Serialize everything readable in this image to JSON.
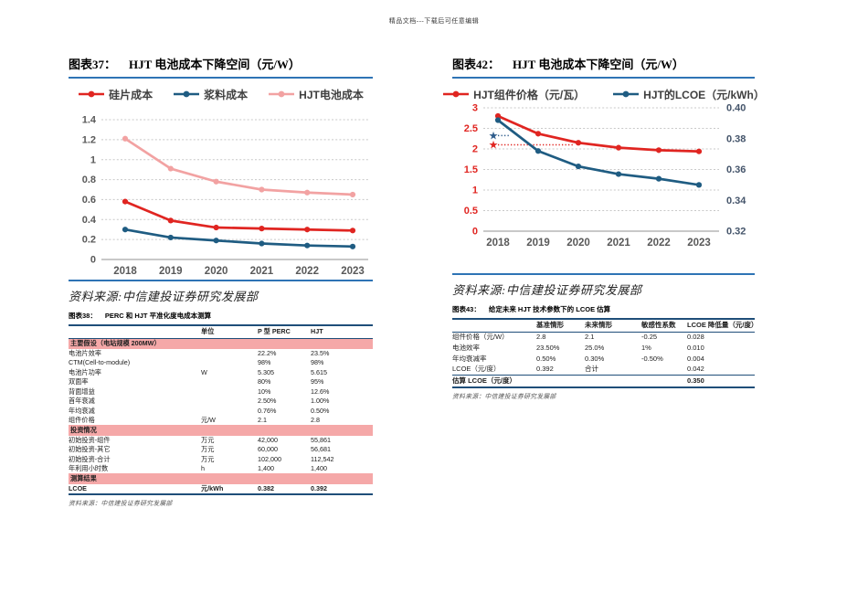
{
  "page": {
    "watermark": "精品文档---下载后可任意编辑"
  },
  "colors": {
    "accent_blue_rule": "#2E74B5",
    "table_rule_navy": "#1F4E79",
    "section_band_pink": "#F5A8A8",
    "series_red": "#E02521",
    "series_navy": "#1F5C82",
    "series_pink": "#F2A2A2",
    "axis_gray": "#595959",
    "right_axis_slate": "#44546A"
  },
  "figure37": {
    "caption_no": "图表37：",
    "caption_title": "HJT 电池成本下降空间（元/W）",
    "source": "资料来源:中信建投证券研究发展部"
  },
  "figure42": {
    "caption_no": "图表42：",
    "caption_title": "HJT 电池成本下降空间（元/W）",
    "source": "资料来源:中信建投证券研究发展部"
  },
  "chart_data": [
    {
      "type": "line",
      "title": "图表37： HJT 电池成本下降空间（元/W）",
      "categories": [
        "2018",
        "2019",
        "2020",
        "2021",
        "2022",
        "2023"
      ],
      "series": [
        {
          "name": "硅片成本",
          "color": "#E02521",
          "axis": "left",
          "values": [
            0.58,
            0.39,
            0.32,
            0.31,
            0.3,
            0.29
          ]
        },
        {
          "name": "浆料成本",
          "color": "#1F5C82",
          "axis": "left",
          "values": [
            0.3,
            0.22,
            0.19,
            0.16,
            0.14,
            0.13
          ]
        },
        {
          "name": "HJT电池成本",
          "color": "#F2A2A2",
          "axis": "left",
          "values": [
            1.21,
            0.91,
            0.78,
            0.7,
            0.67,
            0.65
          ]
        }
      ],
      "left_axis": {
        "min": 0,
        "max": 1.4,
        "step": 0.2,
        "labels": [
          "0",
          "0.2",
          "0.4",
          "0.6",
          "0.8",
          "1",
          "1.2",
          "1.4"
        ],
        "color": "#595959"
      },
      "grid": "dashed-horizontal",
      "legend_position": "top"
    },
    {
      "type": "line",
      "title": "图表42： HJT 电池成本下降空间（元/W）",
      "categories": [
        "2018",
        "2019",
        "2020",
        "2021",
        "2022",
        "2023"
      ],
      "series": [
        {
          "name": "HJT组件价格（元/瓦）",
          "color": "#E02521",
          "axis": "left",
          "values": [
            2.8,
            2.37,
            2.15,
            2.03,
            1.97,
            1.94
          ]
        },
        {
          "name": "HJT的LCOE（元/kWh）",
          "color": "#1F5C82",
          "axis": "right",
          "values": [
            0.392,
            0.372,
            0.362,
            0.357,
            0.354,
            0.35
          ]
        }
      ],
      "left_axis": {
        "min": 0,
        "max": 3,
        "step": 0.5,
        "labels": [
          "0",
          "0.5",
          "1",
          "1.5",
          "2",
          "2.5",
          "3"
        ],
        "color": "#E02521"
      },
      "right_axis": {
        "min": 0.32,
        "max": 0.4,
        "step": 0.02,
        "labels": [
          "0.32",
          "0.34",
          "0.36",
          "0.38",
          "0.40"
        ],
        "color": "#44546A"
      },
      "reference_markers": [
        {
          "shape": "star",
          "axis": "left",
          "value": 2.1,
          "color": "#E02521",
          "dotted_len_categories": 2.0
        },
        {
          "shape": "star",
          "axis": "right",
          "value": 0.382,
          "color": "#2F5D8C",
          "dotted_len_categories": 0.4
        }
      ],
      "grid": "dashed-horizontal",
      "legend_position": "top"
    }
  ],
  "table38": {
    "caption_no": "图表38：",
    "caption_title": "PERC 和 HJT 平准化度电成本测算",
    "columns": [
      "",
      "单位",
      "P 型 PERC",
      "HJT"
    ],
    "rows": [
      {
        "section": "主要假设（电站规模 200MW）"
      },
      {
        "cells": [
          "电池片效率",
          "",
          "22.2%",
          "23.5%"
        ]
      },
      {
        "cells": [
          "CTM(Cell-to-module)",
          "",
          "98%",
          "98%"
        ]
      },
      {
        "cells": [
          "电池片功率",
          "W",
          "5.305",
          "5.615"
        ]
      },
      {
        "cells": [
          "双面率",
          "",
          "80%",
          "95%"
        ]
      },
      {
        "cells": [
          "背面增益",
          "",
          "10%",
          "12.6%"
        ]
      },
      {
        "cells": [
          "首年衰减",
          "",
          "2.50%",
          "1.00%"
        ]
      },
      {
        "cells": [
          "年均衰减",
          "",
          "0.76%",
          "0.50%"
        ]
      },
      {
        "cells": [
          "组件价格",
          "元/W",
          "2.1",
          "2.8"
        ]
      },
      {
        "section": "投资情况"
      },
      {
        "cells": [
          "初始投资-组件",
          "万元",
          "42,000",
          "55,861"
        ]
      },
      {
        "cells": [
          "初始投资-其它",
          "万元",
          "60,000",
          "56,681"
        ]
      },
      {
        "cells": [
          "初始投资-合计",
          "万元",
          "102,000",
          "112,542"
        ]
      },
      {
        "cells": [
          "年利用小时数",
          "h",
          "1,400",
          "1,400"
        ]
      },
      {
        "section": "测算结果"
      },
      {
        "cells": [
          "LCOE",
          "元/kWh",
          "0.382",
          "0.392"
        ],
        "bold": true
      }
    ],
    "source": "资料来源：中信建投证券研究发展部"
  },
  "table43": {
    "caption_no": "图表43：",
    "caption_title": "给定未来 HJT 技术参数下的 LCOE 估算",
    "columns": [
      "",
      "基准情形",
      "未来情形",
      "敏感性系数",
      "LCOE 降低量（元/度）"
    ],
    "rows": [
      {
        "cells": [
          "组件价格（元/W）",
          "2.8",
          "2.1",
          "-0.25",
          "0.028"
        ]
      },
      {
        "cells": [
          "电池效率",
          "23.50%",
          "25.0%",
          "1%",
          "0.010"
        ]
      },
      {
        "cells": [
          "年均衰减率",
          "0.50%",
          "0.30%",
          "-0.50%",
          "0.004"
        ]
      },
      {
        "cells": [
          "LCOE（元/度）",
          "0.392",
          "合计",
          "",
          "0.042"
        ]
      },
      {
        "cells": [
          "估算 LCOE（元/度）",
          "",
          "",
          "",
          "0.350"
        ],
        "bold": true,
        "topline": true
      }
    ],
    "source": "资料来源：中信建投证券研究发展部"
  }
}
